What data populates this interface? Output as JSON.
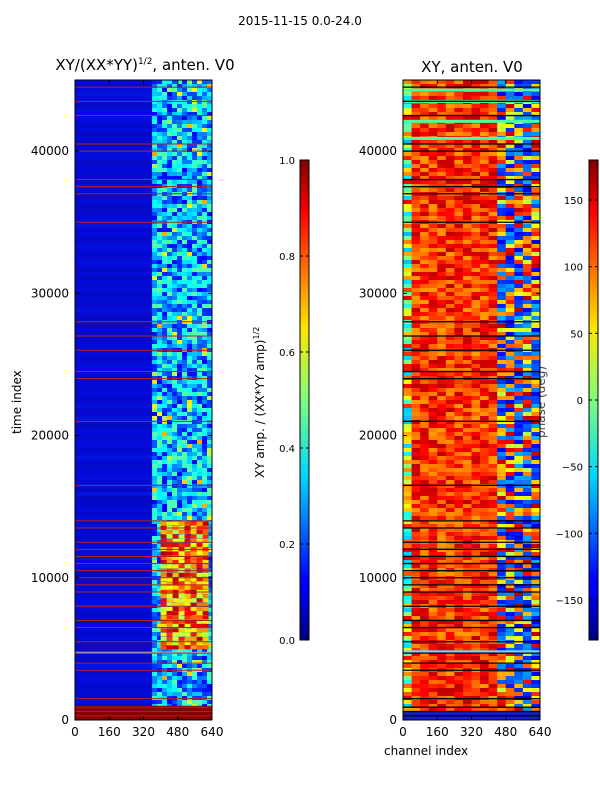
{
  "suptitle": "2015-11-15 0.0-24.0",
  "colors": {
    "axis": "#000000",
    "flag_line": "#b22222"
  },
  "chart_data": [
    {
      "type": "heatmap",
      "title_main": "XY/(XX*YY)",
      "title_sup": "1/2",
      "title_rest": ", anten. V0",
      "xlabel": "",
      "ylabel": "time index",
      "xlim": [
        0,
        640
      ],
      "ylim": [
        0,
        45000
      ],
      "xticks": [
        0,
        160,
        320,
        480,
        640
      ],
      "yticks": [
        0,
        10000,
        20000,
        30000,
        40000
      ],
      "colorbar": {
        "label_main": "XY amp. / (XX*YY amp)",
        "label_sup": "1/2",
        "range": [
          0.0,
          1.0
        ],
        "ticks": [
          "0.0",
          "0.2",
          "0.4",
          "0.6",
          "0.8",
          "1.0"
        ],
        "tick_values": [
          0.0,
          0.2,
          0.4,
          0.6,
          0.8,
          1.0
        ],
        "colormap": "jet"
      },
      "flagged_rows_time_index": [
        300,
        600,
        900,
        1500,
        3500,
        4000,
        4700,
        5500,
        6500,
        7000,
        8000,
        9000,
        9500,
        10000,
        10500,
        11000,
        11500,
        12000,
        12500,
        13500,
        14000,
        16500,
        21000,
        24000,
        24500,
        26000,
        27000,
        28000,
        35000,
        37000,
        37500,
        38000,
        40000,
        40500,
        42500,
        43500,
        44500
      ]
    },
    {
      "type": "heatmap",
      "title_main": "XY, anten. V0",
      "title_sup": "",
      "title_rest": "",
      "xlabel": "channel index",
      "ylabel": "",
      "xlim": [
        0,
        640
      ],
      "ylim": [
        0,
        45000
      ],
      "xticks": [
        0,
        160,
        320,
        480,
        640
      ],
      "yticks": [
        0,
        10000,
        20000,
        30000,
        40000
      ],
      "colorbar": {
        "label_main": "phase (deg)",
        "label_sup": "",
        "range": [
          -180,
          180
        ],
        "ticks": [
          "−150",
          "−100",
          "−50",
          "0",
          "50",
          "100",
          "150"
        ],
        "tick_values": [
          -150,
          -100,
          -50,
          0,
          50,
          100,
          150
        ],
        "colormap": "jet"
      },
      "flagged_rows_time_index": [
        300,
        600,
        900,
        1500,
        3500,
        4000,
        4700,
        5500,
        6500,
        7000,
        8000,
        9000,
        9500,
        10000,
        10500,
        11000,
        11500,
        12000,
        12500,
        13500,
        14000,
        16500,
        21000,
        24000,
        24500,
        26000,
        27000,
        28000,
        35000,
        37000,
        37500,
        38000,
        40000,
        40500,
        42500,
        43500,
        44500
      ]
    }
  ]
}
